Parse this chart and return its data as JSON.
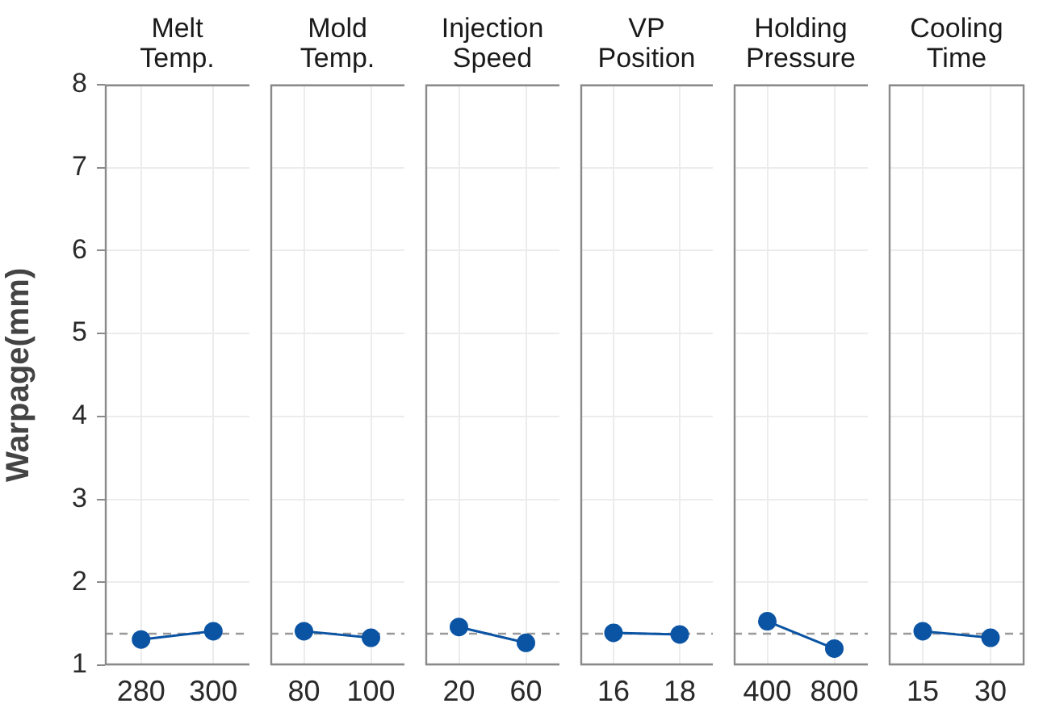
{
  "chart_data": [
    {
      "type": "line",
      "title": "Melt Temp.",
      "ylabel": "Warpage(mm)",
      "categories": [
        "280",
        "300"
      ],
      "values": [
        1.31,
        1.41
      ],
      "color": "#0b54a4",
      "ylim": [
        1,
        8
      ],
      "yticks": [
        1,
        2,
        3,
        4,
        5,
        6,
        7,
        8
      ],
      "grid": true,
      "marker": "circle",
      "ref_lines": [
        {
          "axis": "y",
          "value": 1.38,
          "color": "#999999",
          "line_style": "dashed"
        }
      ]
    },
    {
      "type": "line",
      "title": "Mold Temp.",
      "categories": [
        "80",
        "100"
      ],
      "values": [
        1.41,
        1.33
      ],
      "color": "#0b54a4",
      "ylim": [
        1,
        8
      ],
      "yticks": [
        1,
        2,
        3,
        4,
        5,
        6,
        7,
        8
      ],
      "grid": true,
      "marker": "circle",
      "tick_labels": "x",
      "ref_lines": [
        {
          "axis": "y",
          "value": 1.38,
          "color": "#999999",
          "line_style": "dashed"
        }
      ]
    },
    {
      "type": "line",
      "title": "Injection Speed",
      "categories": [
        "20",
        "60"
      ],
      "values": [
        1.46,
        1.27
      ],
      "color": "#0b54a4",
      "ylim": [
        1,
        8
      ],
      "yticks": [
        1,
        2,
        3,
        4,
        5,
        6,
        7,
        8
      ],
      "grid": true,
      "marker": "circle",
      "tick_labels": "x",
      "ref_lines": [
        {
          "axis": "y",
          "value": 1.38,
          "color": "#999999",
          "line_style": "dashed"
        }
      ]
    },
    {
      "type": "line",
      "title": "VP Position",
      "categories": [
        "16",
        "18"
      ],
      "values": [
        1.39,
        1.37
      ],
      "color": "#0b54a4",
      "ylim": [
        1,
        8
      ],
      "yticks": [
        1,
        2,
        3,
        4,
        5,
        6,
        7,
        8
      ],
      "grid": true,
      "marker": "circle",
      "tick_labels": "x",
      "ref_lines": [
        {
          "axis": "y",
          "value": 1.38,
          "color": "#999999",
          "line_style": "dashed"
        }
      ]
    },
    {
      "type": "line",
      "title": "Holding Pressure",
      "categories": [
        "400",
        "800"
      ],
      "values": [
        1.53,
        1.2
      ],
      "color": "#0b54a4",
      "ylim": [
        1,
        8
      ],
      "yticks": [
        1,
        2,
        3,
        4,
        5,
        6,
        7,
        8
      ],
      "grid": true,
      "marker": "circle",
      "tick_labels": "x",
      "ref_lines": [
        {
          "axis": "y",
          "value": 1.38,
          "color": "#999999",
          "line_style": "dashed"
        }
      ]
    },
    {
      "type": "line",
      "title": "Cooling Time",
      "categories": [
        "15",
        "30"
      ],
      "values": [
        1.41,
        1.33
      ],
      "color": "#0b54a4",
      "ylim": [
        1,
        8
      ],
      "yticks": [
        1,
        2,
        3,
        4,
        5,
        6,
        7,
        8
      ],
      "grid": true,
      "marker": "circle",
      "tick_labels": "x",
      "ref_lines": [
        {
          "axis": "y",
          "value": 1.38,
          "color": "#999999",
          "line_style": "dashed"
        }
      ]
    }
  ]
}
